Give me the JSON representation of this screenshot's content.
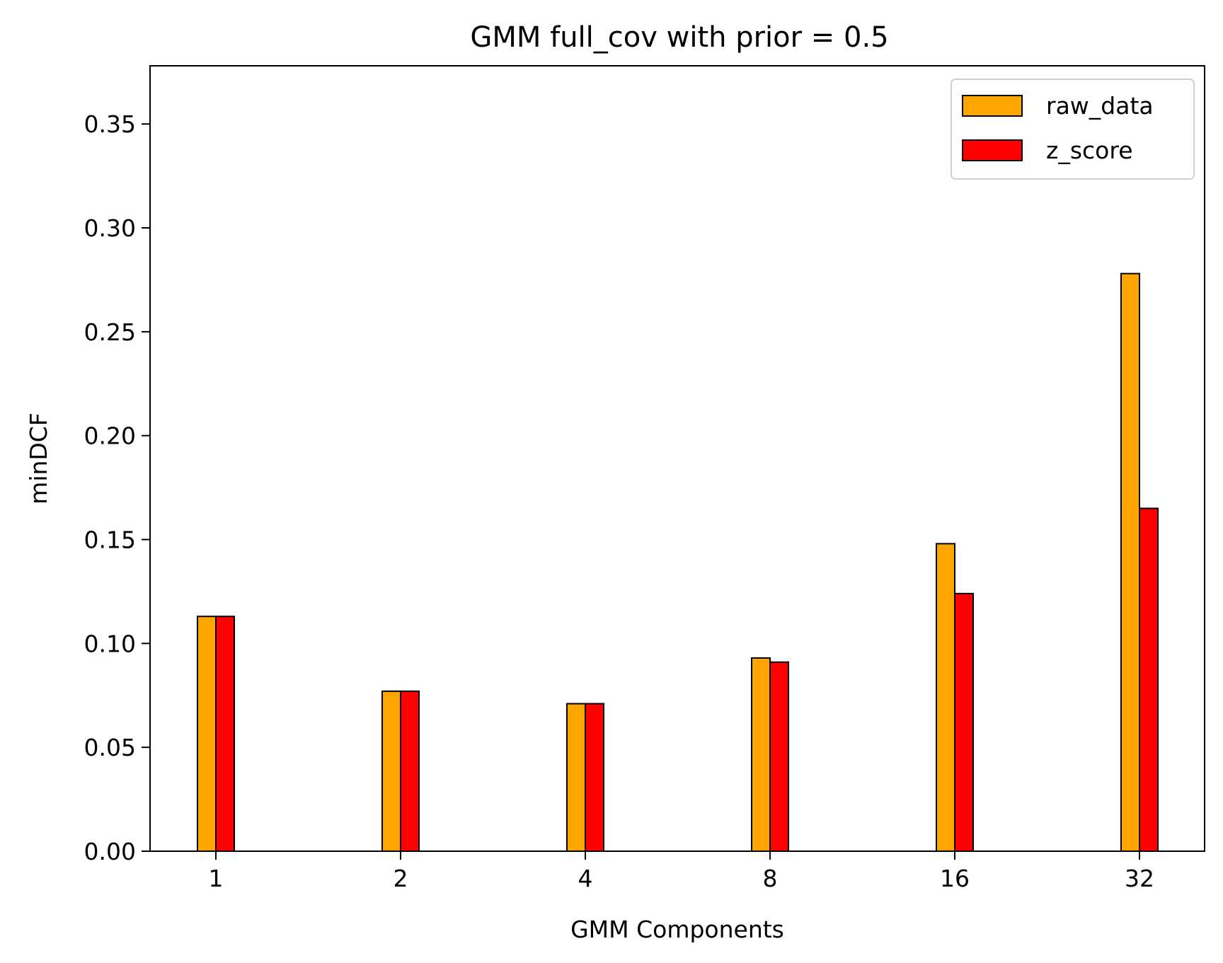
{
  "chart_data": {
    "type": "bar",
    "title": "GMM full_cov with prior = 0.5",
    "xlabel": "GMM Components",
    "ylabel": "minDCF",
    "categories": [
      "1",
      "2",
      "4",
      "8",
      "16",
      "32"
    ],
    "series": [
      {
        "name": "raw_data",
        "color": "#ffa500",
        "values": [
          0.113,
          0.077,
          0.071,
          0.093,
          0.148,
          0.278
        ]
      },
      {
        "name": "z_score",
        "color": "#ff0000",
        "values": [
          0.113,
          0.077,
          0.071,
          0.091,
          0.124,
          0.165
        ]
      }
    ],
    "ylim": [
      0,
      0.378
    ],
    "yticks": [
      "0.00",
      "0.05",
      "0.10",
      "0.15",
      "0.20",
      "0.25",
      "0.30",
      "0.35"
    ],
    "grid": false,
    "legend_position": "top-right"
  }
}
